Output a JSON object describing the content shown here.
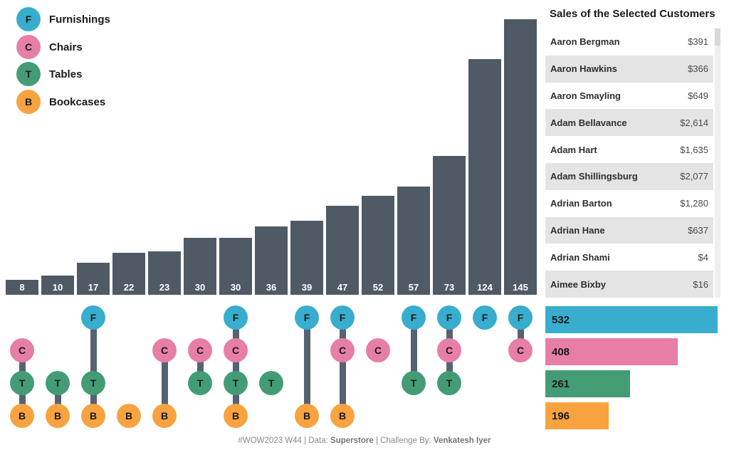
{
  "legend": {
    "items": [
      {
        "code": "F",
        "label": "Furnishings",
        "color": "#38ADCD"
      },
      {
        "code": "C",
        "label": "Chairs",
        "color": "#E67EA6"
      },
      {
        "code": "T",
        "label": "Tables",
        "color": "#439C76"
      },
      {
        "code": "B",
        "label": "Bookcases",
        "color": "#F8A340"
      }
    ]
  },
  "chart_data": [
    {
      "type": "bar",
      "name": "set-intersection-sizes",
      "orientation": "vertical",
      "categories": [
        "C+T+B",
        "T+B",
        "F+T+B",
        "B",
        "C+B",
        "C+T",
        "F+C+T+B",
        "T",
        "F+B",
        "F+C+B",
        "C",
        "F+T",
        "F+C+T",
        "F",
        "F+C"
      ],
      "values": [
        8,
        10,
        17,
        22,
        23,
        30,
        30,
        36,
        39,
        47,
        52,
        57,
        73,
        124,
        145
      ],
      "sets": [
        [
          "C",
          "T",
          "B"
        ],
        [
          "T",
          "B"
        ],
        [
          "F",
          "T",
          "B"
        ],
        [
          "B"
        ],
        [
          "C",
          "B"
        ],
        [
          "C",
          "T"
        ],
        [
          "F",
          "C",
          "T",
          "B"
        ],
        [
          "T"
        ],
        [
          "F",
          "B"
        ],
        [
          "F",
          "C",
          "B"
        ],
        [
          "C"
        ],
        [
          "F",
          "T"
        ],
        [
          "F",
          "C",
          "T"
        ],
        [
          "F"
        ],
        [
          "F",
          "C"
        ]
      ],
      "bar_color": "#4F5A65",
      "connector_color": "#566270",
      "label_color": "#FFFFFF",
      "ylim": [
        0,
        145
      ],
      "grid": false,
      "labels_inside_bars": true
    },
    {
      "type": "bar",
      "name": "category-totals",
      "orientation": "horizontal",
      "series": [
        {
          "name": "Furnishings",
          "value": 532,
          "color": "#38ADCD"
        },
        {
          "name": "Chairs",
          "value": 408,
          "color": "#E67EA6"
        },
        {
          "name": "Tables",
          "value": 261,
          "color": "#439C76"
        },
        {
          "name": "Bookcases",
          "value": 196,
          "color": "#F8A340"
        }
      ],
      "xlim": [
        0,
        532
      ]
    },
    {
      "type": "table",
      "name": "customer-sales",
      "title": "Sales of the Selected Customers",
      "rows": [
        {
          "name": "Aaron Bergman",
          "sales": "$391"
        },
        {
          "name": "Aaron Hawkins",
          "sales": "$366"
        },
        {
          "name": "Aaron Smayling",
          "sales": "$649"
        },
        {
          "name": "Adam Bellavance",
          "sales": "$2,614"
        },
        {
          "name": "Adam Hart",
          "sales": "$1,635"
        },
        {
          "name": "Adam Shillingsburg",
          "sales": "$2,077"
        },
        {
          "name": "Adrian Barton",
          "sales": "$1,280"
        },
        {
          "name": "Adrian Hane",
          "sales": "$637"
        },
        {
          "name": "Adrian Shami",
          "sales": "$4"
        },
        {
          "name": "Aimee Bixby",
          "sales": "$16"
        }
      ],
      "zebra_color": "#E4E4E4"
    }
  ],
  "footer": {
    "segments": [
      {
        "text": "#WOW2023 W44 | Data: ",
        "bold": false
      },
      {
        "text": "Superstore",
        "bold": true
      },
      {
        "text": " | Challenge By: ",
        "bold": false
      },
      {
        "text": "Venkatesh Iyer",
        "bold": true
      }
    ]
  }
}
